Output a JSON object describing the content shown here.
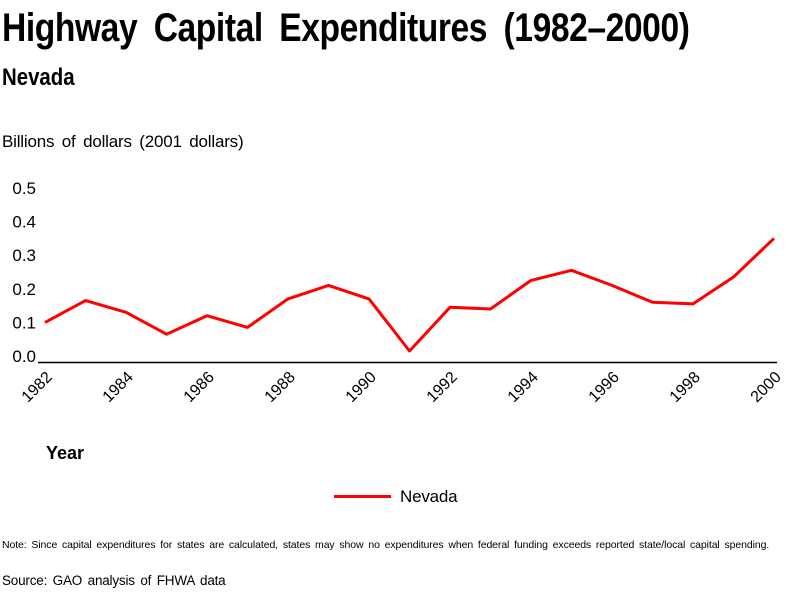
{
  "header": {
    "title": "Highway Capital Expenditures (1982–2000)",
    "subtitle": "Nevada"
  },
  "axis": {
    "unit_label": "Billions of dollars (2001 dollars)",
    "x_axis_title": "Year"
  },
  "legend": {
    "label": "Nevada",
    "swatch_color": "#ff0000"
  },
  "footer": {
    "note": "Note: Since capital expenditures for states are calculated, states may show no expenditures when federal funding exceeds reported state/local capital spending.",
    "source": "Source: GAO analysis of FHWA data"
  },
  "colors": {
    "line": "#ff0000",
    "axis": "#000000",
    "text": "#000000",
    "background": "#ffffff"
  },
  "chart_data": {
    "type": "line",
    "title": "Highway Capital Expenditures (1982–2000)",
    "subtitle": "Nevada",
    "ylabel": "Billions of dollars (2001 dollars)",
    "xlabel": "Year",
    "x": [
      1982,
      1983,
      1984,
      1985,
      1986,
      1987,
      1988,
      1989,
      1990,
      1991,
      1992,
      1993,
      1994,
      1995,
      1996,
      1997,
      1998,
      1999,
      2000
    ],
    "series": [
      {
        "name": "Nevada",
        "color": "#ff0000",
        "values": [
          0.1,
          0.165,
          0.13,
          0.065,
          0.12,
          0.085,
          0.17,
          0.21,
          0.17,
          0.015,
          0.145,
          0.14,
          0.225,
          0.255,
          0.21,
          0.16,
          0.155,
          0.235,
          0.35
        ]
      }
    ],
    "ylim": [
      0.0,
      0.5
    ],
    "yticks": [
      0.0,
      0.1,
      0.2,
      0.3,
      0.4,
      0.5
    ],
    "xticks": [
      1982,
      1984,
      1986,
      1988,
      1990,
      1992,
      1994,
      1996,
      1998,
      2000
    ],
    "xtick_rotation_deg": -45,
    "grid": false,
    "legend_position": "bottom"
  }
}
